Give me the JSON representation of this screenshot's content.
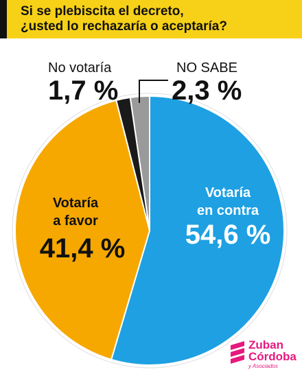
{
  "chart_data": {
    "type": "pie",
    "title": "Si se plebiscita el decreto,\n¿usted lo rechazaría o aceptaría?",
    "categories": [
      "Votaría\nen contra",
      "Votaría\na favor",
      "No votaría",
      "NO SABE"
    ],
    "values": [
      54.6,
      41.4,
      1.7,
      2.3
    ],
    "value_labels": [
      "54,6 %",
      "41,4 %",
      "1,7 %",
      "2,3 %"
    ],
    "colors": [
      "#1ea0e2",
      "#f6a800",
      "#1a1a1a",
      "#9a9a9a"
    ]
  },
  "logo": {
    "line1": "Zuban",
    "line2": "Córdoba",
    "line3": "y Asociados"
  }
}
